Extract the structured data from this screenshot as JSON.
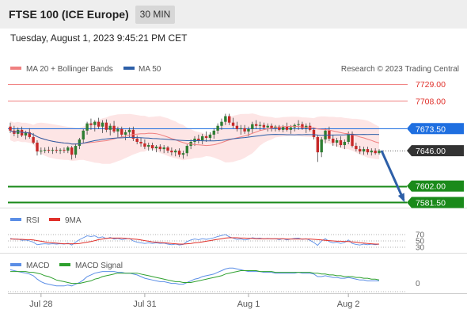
{
  "header": {
    "title": "FTSE 100 (ICE Europe)",
    "timeframe": "30 MIN",
    "datetime": "Tuesday, August 1, 2023 9:45:21 PM CET"
  },
  "legend": {
    "ma20_label": "MA 20 + Bollinger Bands",
    "ma50_label": "MA 50",
    "copyright": "Research © 2023 Trading Central"
  },
  "colors": {
    "ma20": "#f08080",
    "bollinger": "#fbd3d3",
    "ma50": "#2d5fa8",
    "bullish": "#2e7d32",
    "bearish": "#c62828",
    "support": "#1a8a1a",
    "resistance": "#f08080",
    "pivot": "#1f6fe0",
    "last": "#333333",
    "arrow": "#2d5fa8",
    "rsi": "#5b8ee6",
    "rsi_ma": "#e0302a",
    "macd": "#5b8ee6",
    "macd_signal": "#2ea02e"
  },
  "levels": {
    "r2": {
      "value": 7729.0,
      "label": "7729.00"
    },
    "r1": {
      "value": 7708.0,
      "label": "7708.00"
    },
    "pivot": {
      "value": 7673.5,
      "label": "7673.50"
    },
    "last": {
      "value": 7646.0,
      "label": "7646.00"
    },
    "s1": {
      "value": 7602.0,
      "label": "7602.00"
    },
    "s2": {
      "value": 7581.5,
      "label": "7581.50"
    }
  },
  "rsi_legend": {
    "rsi": "RSI",
    "ma": "9MA"
  },
  "rsi_levels": [
    "70",
    "50",
    "30"
  ],
  "macd_legend": {
    "macd": "MACD",
    "signal": "MACD Signal"
  },
  "macd_zero": "0",
  "x_axis": [
    "Jul 28",
    "Jul 31",
    "Aug 1",
    "Aug 2"
  ],
  "chart_data": {
    "type": "candlestick",
    "price_range": [
      7580,
      7735
    ],
    "ohlc": [
      [
        7676,
        7681,
        7668,
        7671
      ],
      [
        7671,
        7677,
        7664,
        7667
      ],
      [
        7667,
        7675,
        7662,
        7672
      ],
      [
        7672,
        7676,
        7663,
        7665
      ],
      [
        7665,
        7671,
        7660,
        7669
      ],
      [
        7669,
        7674,
        7661,
        7663
      ],
      [
        7663,
        7668,
        7654,
        7656
      ],
      [
        7656,
        7659,
        7640,
        7645
      ],
      [
        7645,
        7650,
        7641,
        7646
      ],
      [
        7646,
        7650,
        7643,
        7647
      ],
      [
        7647,
        7651,
        7643,
        7646
      ],
      [
        7646,
        7650,
        7642,
        7647
      ],
      [
        7647,
        7651,
        7643,
        7646
      ],
      [
        7646,
        7649,
        7642,
        7647
      ],
      [
        7647,
        7650,
        7643,
        7646
      ],
      [
        7646,
        7652,
        7643,
        7650
      ],
      [
        7650,
        7652,
        7635,
        7641
      ],
      [
        7641,
        7655,
        7637,
        7652
      ],
      [
        7652,
        7662,
        7648,
        7660
      ],
      [
        7660,
        7673,
        7656,
        7671
      ],
      [
        7671,
        7682,
        7666,
        7680
      ],
      [
        7680,
        7686,
        7672,
        7678
      ],
      [
        7678,
        7684,
        7670,
        7682
      ],
      [
        7682,
        7687,
        7673,
        7676
      ],
      [
        7676,
        7684,
        7668,
        7681
      ],
      [
        7681,
        7685,
        7669,
        7672
      ],
      [
        7672,
        7680,
        7665,
        7677
      ],
      [
        7677,
        7683,
        7668,
        7670
      ],
      [
        7670,
        7676,
        7662,
        7673
      ],
      [
        7673,
        7676,
        7663,
        7666
      ],
      [
        7666,
        7672,
        7659,
        7669
      ],
      [
        7669,
        7675,
        7663,
        7672
      ],
      [
        7672,
        7676,
        7658,
        7661
      ],
      [
        7661,
        7665,
        7654,
        7657
      ],
      [
        7657,
        7662,
        7651,
        7655
      ],
      [
        7655,
        7660,
        7648,
        7651
      ],
      [
        7651,
        7656,
        7646,
        7653
      ],
      [
        7653,
        7656,
        7646,
        7649
      ],
      [
        7649,
        7653,
        7644,
        7651
      ],
      [
        7651,
        7654,
        7645,
        7648
      ],
      [
        7648,
        7653,
        7643,
        7650
      ],
      [
        7650,
        7652,
        7643,
        7646
      ],
      [
        7646,
        7650,
        7640,
        7644
      ],
      [
        7644,
        7648,
        7639,
        7646
      ],
      [
        7646,
        7649,
        7638,
        7641
      ],
      [
        7641,
        7646,
        7636,
        7643
      ],
      [
        7643,
        7654,
        7639,
        7652
      ],
      [
        7652,
        7660,
        7648,
        7657
      ],
      [
        7657,
        7664,
        7652,
        7661
      ],
      [
        7661,
        7666,
        7655,
        7659
      ],
      [
        7659,
        7667,
        7654,
        7664
      ],
      [
        7664,
        7670,
        7657,
        7662
      ],
      [
        7662,
        7669,
        7658,
        7666
      ],
      [
        7666,
        7674,
        7661,
        7671
      ],
      [
        7671,
        7680,
        7667,
        7677
      ],
      [
        7677,
        7686,
        7672,
        7682
      ],
      [
        7682,
        7692,
        7678,
        7689
      ],
      [
        7689,
        7692,
        7678,
        7681
      ],
      [
        7681,
        7687,
        7674,
        7677
      ],
      [
        7677,
        7682,
        7670,
        7673
      ],
      [
        7673,
        7678,
        7666,
        7674
      ],
      [
        7674,
        7678,
        7667,
        7670
      ],
      [
        7670,
        7676,
        7664,
        7673
      ],
      [
        7673,
        7682,
        7668,
        7679
      ],
      [
        7679,
        7684,
        7673,
        7677
      ],
      [
        7677,
        7682,
        7671,
        7678
      ],
      [
        7678,
        7681,
        7672,
        7675
      ],
      [
        7675,
        7680,
        7670,
        7677
      ],
      [
        7677,
        7680,
        7670,
        7674
      ],
      [
        7674,
        7678,
        7670,
        7676
      ],
      [
        7676,
        7678,
        7670,
        7672
      ],
      [
        7672,
        7678,
        7669,
        7676
      ],
      [
        7676,
        7681,
        7670,
        7672
      ],
      [
        7672,
        7678,
        7667,
        7675
      ],
      [
        7675,
        7680,
        7670,
        7678
      ],
      [
        7678,
        7684,
        7672,
        7679
      ],
      [
        7679,
        7682,
        7672,
        7674
      ],
      [
        7674,
        7680,
        7668,
        7677
      ],
      [
        7677,
        7681,
        7670,
        7672
      ],
      [
        7672,
        7675,
        7660,
        7663
      ],
      [
        7663,
        7666,
        7632,
        7644
      ],
      [
        7644,
        7663,
        7638,
        7660
      ],
      [
        7660,
        7674,
        7655,
        7671
      ],
      [
        7671,
        7676,
        7658,
        7661
      ],
      [
        7661,
        7666,
        7652,
        7656
      ],
      [
        7656,
        7662,
        7651,
        7659
      ],
      [
        7659,
        7664,
        7650,
        7653
      ],
      [
        7653,
        7660,
        7648,
        7657
      ],
      [
        7657,
        7670,
        7654,
        7667
      ],
      [
        7667,
        7670,
        7650,
        7652
      ],
      [
        7652,
        7656,
        7645,
        7648
      ],
      [
        7648,
        7652,
        7642,
        7645
      ],
      [
        7645,
        7651,
        7641,
        7648
      ],
      [
        7648,
        7651,
        7641,
        7644
      ],
      [
        7644,
        7649,
        7640,
        7646
      ],
      [
        7646,
        7649,
        7641,
        7643
      ],
      [
        7643,
        7648,
        7641,
        7646
      ]
    ],
    "projection": {
      "from": 7646.0,
      "to": 7581.5
    },
    "rsi": [
      58,
      55,
      56,
      52,
      53,
      50,
      46,
      38,
      40,
      41,
      40,
      41,
      40,
      41,
      40,
      43,
      37,
      46,
      54,
      60,
      66,
      64,
      66,
      60,
      63,
      57,
      61,
      56,
      58,
      54,
      56,
      58,
      50,
      46,
      44,
      42,
      44,
      42,
      44,
      42,
      43,
      40,
      38,
      40,
      37,
      39,
      48,
      53,
      56,
      54,
      57,
      55,
      57,
      60,
      64,
      67,
      70,
      63,
      59,
      55,
      56,
      53,
      55,
      60,
      58,
      59,
      56,
      58,
      56,
      57,
      54,
      57,
      53,
      56,
      58,
      59,
      55,
      57,
      52,
      45,
      36,
      50,
      57,
      48,
      44,
      46,
      42,
      45,
      53,
      42,
      39,
      37,
      40,
      38,
      40,
      38,
      40
    ],
    "rsi_ma": [
      56,
      56,
      55,
      55,
      54,
      54,
      53,
      51,
      49,
      47,
      45,
      44,
      43,
      42,
      41,
      41,
      41,
      41,
      42,
      44,
      46,
      48,
      51,
      54,
      56,
      58,
      59,
      59,
      59,
      59,
      58,
      57,
      56,
      55,
      53,
      51,
      49,
      47,
      46,
      45,
      44,
      43,
      42,
      41,
      40,
      40,
      41,
      42,
      44,
      45,
      47,
      49,
      51,
      53,
      55,
      57,
      59,
      60,
      60,
      60,
      59,
      59,
      58,
      58,
      57,
      57,
      57,
      57,
      57,
      57,
      57,
      57,
      56,
      56,
      56,
      56,
      56,
      56,
      56,
      55,
      54,
      53,
      52,
      51,
      50,
      49,
      49,
      48,
      48,
      47,
      46,
      44,
      43,
      42,
      41,
      40,
      40
    ],
    "macd": [
      8,
      7,
      6,
      5,
      4,
      3,
      1,
      -3,
      -6,
      -8,
      -9,
      -10,
      -11,
      -11,
      -11,
      -10,
      -11,
      -9,
      -7,
      -4,
      0,
      2,
      4,
      5,
      6,
      6,
      6,
      6,
      5,
      5,
      4,
      4,
      3,
      2,
      0,
      -2,
      -3,
      -4,
      -5,
      -6,
      -6,
      -7,
      -8,
      -8,
      -9,
      -9,
      -7,
      -5,
      -3,
      -2,
      0,
      1,
      2,
      3,
      5,
      7,
      9,
      10,
      10,
      9,
      8,
      7,
      6,
      6,
      6,
      6,
      5,
      5,
      5,
      4,
      4,
      4,
      4,
      4,
      4,
      5,
      4,
      4,
      4,
      3,
      0,
      0,
      1,
      0,
      -1,
      -1,
      -2,
      -2,
      -1,
      -2,
      -3,
      -4,
      -4,
      -5,
      -5,
      -5,
      -5
    ],
    "macd_signal": [
      6,
      6,
      6,
      6,
      6,
      5,
      5,
      4,
      3,
      1,
      0,
      -2,
      -4,
      -5,
      -6,
      -7,
      -8,
      -8,
      -8,
      -7,
      -6,
      -5,
      -3,
      -2,
      0,
      1,
      2,
      3,
      4,
      4,
      4,
      4,
      4,
      4,
      3,
      2,
      1,
      0,
      -1,
      -2,
      -3,
      -4,
      -5,
      -6,
      -6,
      -7,
      -7,
      -7,
      -6,
      -5,
      -4,
      -3,
      -2,
      -1,
      0,
      1,
      3,
      4,
      5,
      6,
      7,
      7,
      7,
      7,
      7,
      6,
      6,
      6,
      6,
      5,
      5,
      5,
      5,
      5,
      5,
      5,
      5,
      5,
      5,
      4,
      4,
      3,
      3,
      2,
      2,
      1,
      1,
      0,
      0,
      0,
      -1,
      -1,
      -2,
      -2,
      -3,
      -3,
      -4
    ],
    "x_ticks": [
      "Jul 28",
      "Jul 31",
      "Aug 1",
      "Aug 2"
    ],
    "x_tick_bars": [
      8,
      35,
      62,
      88
    ],
    "rsi_range": [
      0,
      100
    ],
    "rsi_levels": [
      70,
      50,
      30
    ],
    "macd_range": [
      -14,
      14
    ],
    "grid": false
  }
}
